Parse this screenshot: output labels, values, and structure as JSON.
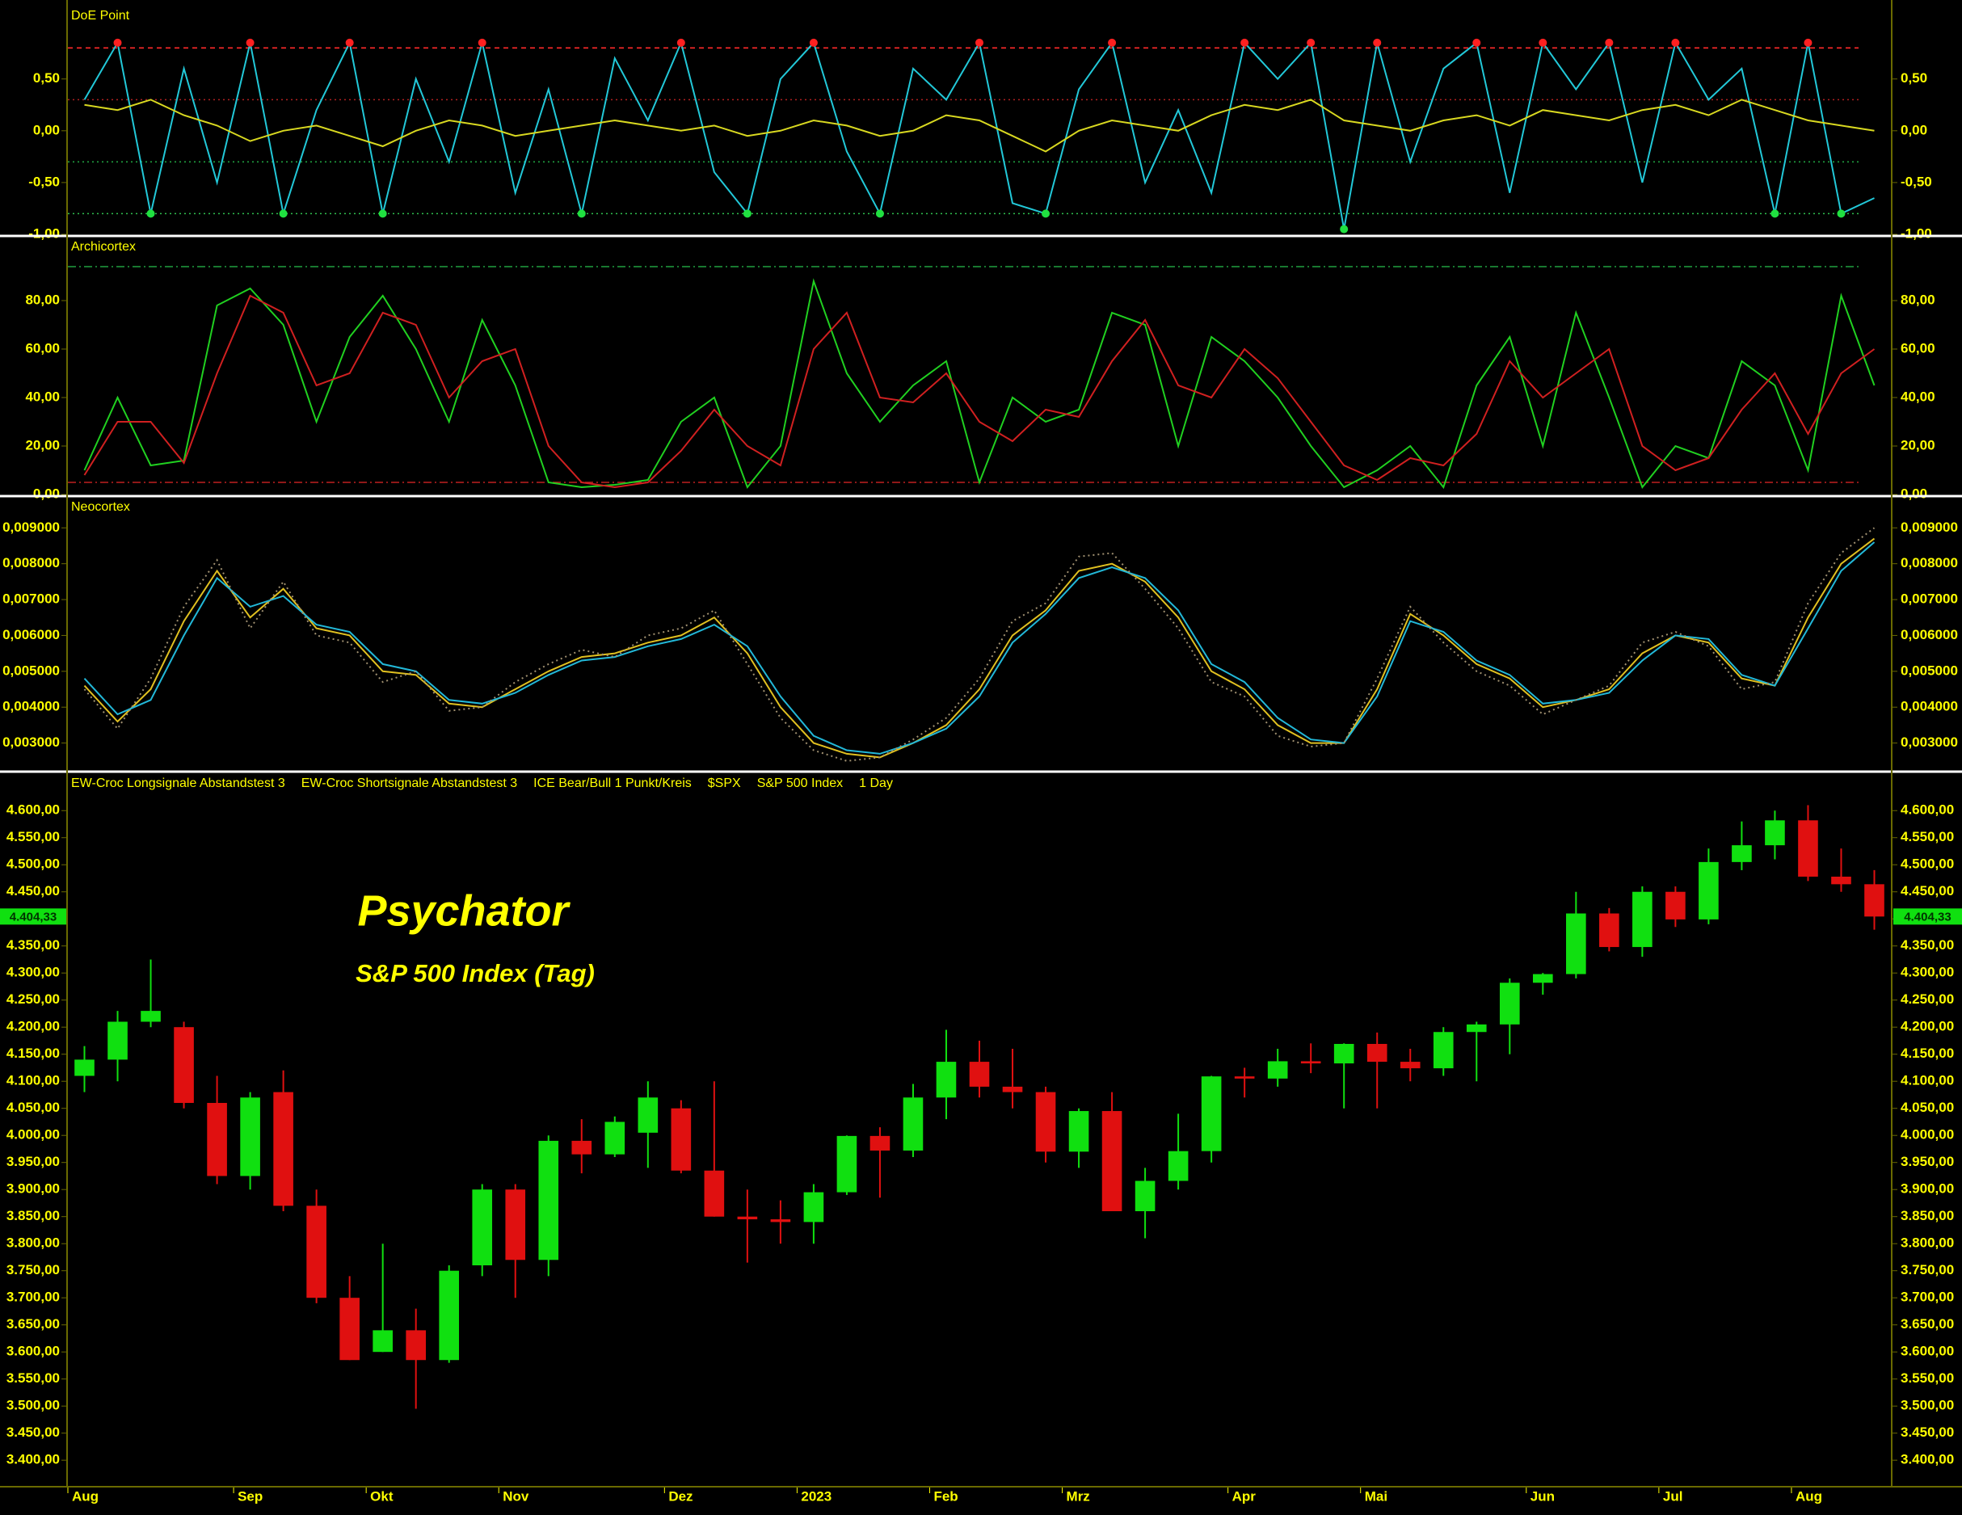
{
  "chart_data": [
    {
      "type": "line",
      "title": "DoE Point",
      "ylim": [
        -1.0,
        1.2
      ],
      "yticks": [
        {
          "value": 0.5,
          "label": "0,50"
        },
        {
          "value": 0,
          "label": "0,00"
        },
        {
          "value": -0.5,
          "label": "-0,50"
        },
        {
          "value": -1.0,
          "label": "-1,00"
        }
      ],
      "hlines": [
        {
          "value": 0.8,
          "color": "#ff2a2a",
          "style": "dashed"
        },
        {
          "value": 0.3,
          "color": "#b02020",
          "style": "dotted"
        },
        {
          "value": -0.3,
          "color": "#20a040",
          "style": "dotted"
        },
        {
          "value": -0.8,
          "color": "#30c050",
          "style": "dotted"
        }
      ],
      "series": [
        {
          "color": "#22c8d8",
          "values": [
            0.3,
            0.85,
            -0.8,
            0.6,
            -0.5,
            0.85,
            -0.8,
            0.2,
            0.85,
            -0.8,
            0.5,
            -0.3,
            0.85,
            -0.6,
            0.4,
            -0.8,
            0.7,
            0.1,
            0.85,
            -0.4,
            -0.8,
            0.5,
            0.85,
            -0.2,
            -0.8,
            0.6,
            0.3,
            0.85,
            -0.7,
            -0.8,
            0.4,
            0.85,
            -0.5,
            0.2,
            -0.6,
            0.85,
            0.5,
            0.85,
            -0.95,
            0.85,
            -0.3,
            0.6,
            0.85,
            -0.6,
            0.85,
            0.4,
            0.85,
            -0.5,
            0.85,
            0.3,
            0.6,
            -0.8,
            0.85,
            -0.8,
            -0.65
          ]
        },
        {
          "color": "#d8d820",
          "values": [
            0.25,
            0.2,
            0.3,
            0.15,
            0.05,
            -0.1,
            0.0,
            0.05,
            -0.05,
            -0.15,
            0.0,
            0.1,
            0.05,
            -0.05,
            0.0,
            0.05,
            0.1,
            0.05,
            0.0,
            0.05,
            -0.05,
            0.0,
            0.1,
            0.05,
            -0.05,
            0.0,
            0.15,
            0.1,
            -0.05,
            -0.2,
            0.0,
            0.1,
            0.05,
            0.0,
            0.15,
            0.25,
            0.2,
            0.3,
            0.1,
            0.05,
            0.0,
            0.1,
            0.15,
            0.05,
            0.2,
            0.15,
            0.1,
            0.2,
            0.25,
            0.15,
            0.3,
            0.2,
            0.1,
            0.05,
            0.0
          ]
        }
      ]
    },
    {
      "type": "line",
      "title": "Archicortex",
      "ylim": [
        0,
        106
      ],
      "yticks": [
        {
          "value": 0,
          "label": "0,00"
        },
        {
          "value": 20,
          "label": "20,00"
        },
        {
          "value": 40,
          "label": "40,00"
        },
        {
          "value": 60,
          "label": "60,00"
        },
        {
          "value": 80,
          "label": "80,00"
        }
      ],
      "hlines": [
        {
          "value": 94,
          "color": "#20a040",
          "style": "dashdot"
        },
        {
          "value": 5,
          "color": "#c02020",
          "style": "dashdot"
        }
      ],
      "series": [
        {
          "color": "#20d020",
          "values": [
            10,
            40,
            12,
            14,
            78,
            85,
            70,
            30,
            65,
            82,
            60,
            30,
            72,
            45,
            5,
            3,
            4,
            6,
            30,
            40,
            3,
            20,
            88,
            50,
            30,
            45,
            55,
            5,
            40,
            30,
            35,
            75,
            70,
            20,
            65,
            55,
            40,
            20,
            3,
            10,
            20,
            3,
            45,
            65,
            20,
            75,
            40,
            3,
            20,
            15,
            55,
            45,
            10,
            82,
            45
          ]
        },
        {
          "color": "#d02020",
          "values": [
            8,
            30,
            30,
            13,
            50,
            82,
            75,
            45,
            50,
            75,
            70,
            40,
            55,
            60,
            20,
            5,
            3,
            5,
            18,
            35,
            20,
            12,
            60,
            75,
            40,
            38,
            50,
            30,
            22,
            35,
            32,
            55,
            72,
            45,
            40,
            60,
            48,
            30,
            12,
            6,
            15,
            12,
            25,
            55,
            40,
            50,
            60,
            20,
            10,
            15,
            35,
            50,
            25,
            50,
            60
          ]
        }
      ]
    },
    {
      "type": "line",
      "title": "Neocortex",
      "ylim": [
        0.00227,
        0.00984
      ],
      "yticks": [
        {
          "value": 0.003,
          "label": "0,003000"
        },
        {
          "value": 0.004,
          "label": "0,004000"
        },
        {
          "value": 0.005,
          "label": "0,005000"
        },
        {
          "value": 0.006,
          "label": "0,006000"
        },
        {
          "value": 0.007,
          "label": "0,007000"
        },
        {
          "value": 0.008,
          "label": "0,008000"
        },
        {
          "value": 0.009,
          "label": "0,009000"
        }
      ],
      "series": [
        {
          "color": "#e0c020",
          "values": [
            0.0046,
            0.0036,
            0.0045,
            0.0064,
            0.0078,
            0.0065,
            0.0073,
            0.0062,
            0.006,
            0.005,
            0.0049,
            0.0041,
            0.004,
            0.0045,
            0.005,
            0.0054,
            0.0055,
            0.0058,
            0.006,
            0.0065,
            0.0055,
            0.004,
            0.003,
            0.0027,
            0.0026,
            0.003,
            0.0035,
            0.0045,
            0.006,
            0.0067,
            0.0078,
            0.008,
            0.0075,
            0.0065,
            0.005,
            0.0045,
            0.0035,
            0.003,
            0.003,
            0.0045,
            0.0066,
            0.006,
            0.0052,
            0.0048,
            0.004,
            0.0042,
            0.0045,
            0.0055,
            0.006,
            0.0058,
            0.0048,
            0.0046,
            0.0065,
            0.008,
            0.0087
          ]
        },
        {
          "color": "#22b8d8",
          "values": [
            0.0048,
            0.0038,
            0.0042,
            0.006,
            0.0076,
            0.0068,
            0.0071,
            0.0063,
            0.0061,
            0.0052,
            0.005,
            0.0042,
            0.0041,
            0.0044,
            0.0049,
            0.0053,
            0.0054,
            0.0057,
            0.0059,
            0.0063,
            0.0057,
            0.0043,
            0.0032,
            0.0028,
            0.0027,
            0.003,
            0.0034,
            0.0043,
            0.0058,
            0.0066,
            0.0076,
            0.0079,
            0.0076,
            0.0067,
            0.0052,
            0.0047,
            0.0037,
            0.0031,
            0.003,
            0.0043,
            0.0064,
            0.0061,
            0.0053,
            0.0049,
            0.0041,
            0.0042,
            0.0044,
            0.0053,
            0.006,
            0.0059,
            0.0049,
            0.0046,
            0.0062,
            0.0078,
            0.0086
          ]
        },
        {
          "color": "#a09070",
          "style": "dotted",
          "values": [
            0.0045,
            0.0034,
            0.0048,
            0.0068,
            0.0081,
            0.0062,
            0.0075,
            0.006,
            0.0058,
            0.0047,
            0.005,
            0.0039,
            0.004,
            0.0047,
            0.0052,
            0.0056,
            0.0054,
            0.006,
            0.0062,
            0.0067,
            0.0052,
            0.0037,
            0.0028,
            0.0025,
            0.0026,
            0.0031,
            0.0037,
            0.0048,
            0.0064,
            0.0069,
            0.0082,
            0.0083,
            0.0073,
            0.0062,
            0.0047,
            0.0043,
            0.0032,
            0.0029,
            0.003,
            0.0048,
            0.0068,
            0.0058,
            0.005,
            0.0046,
            0.0038,
            0.0042,
            0.0046,
            0.0058,
            0.0061,
            0.0057,
            0.0045,
            0.0047,
            0.0069,
            0.0083,
            0.009
          ]
        }
      ]
    },
    {
      "type": "candlestick",
      "legend": [
        "EW-Croc Longsignale Abstandstest 3",
        "EW-Croc Shortsignale Abstandstest 3",
        "ICE Bear/Bull 1 Punkt/Kreis",
        "$SPX",
        "S&P 500 Index",
        "1 Day"
      ],
      "annotations": [
        "Psychator",
        "S&P 500 Index (Tag)"
      ],
      "up_color": "#10e010",
      "down_color": "#e01010",
      "last": {
        "value": 4404.33,
        "label": "4.404,33"
      },
      "ylim": [
        3354,
        4669
      ],
      "yticks": [
        {
          "value": 3400,
          "label": "3.400,00"
        },
        {
          "value": 3450,
          "label": "3.450,00"
        },
        {
          "value": 3500,
          "label": "3.500,00"
        },
        {
          "value": 3550,
          "label": "3.550,00"
        },
        {
          "value": 3600,
          "label": "3.600,00"
        },
        {
          "value": 3650,
          "label": "3.650,00"
        },
        {
          "value": 3700,
          "label": "3.700,00"
        },
        {
          "value": 3750,
          "label": "3.750,00"
        },
        {
          "value": 3800,
          "label": "3.800,00"
        },
        {
          "value": 3850,
          "label": "3.850,00"
        },
        {
          "value": 3900,
          "label": "3.900,00"
        },
        {
          "value": 3950,
          "label": "3.950,00"
        },
        {
          "value": 4000,
          "label": "4.000,00"
        },
        {
          "value": 4050,
          "label": "4.050,00"
        },
        {
          "value": 4100,
          "label": "4.100,00"
        },
        {
          "value": 4150,
          "label": "4.150,00"
        },
        {
          "value": 4200,
          "label": "4.200,00"
        },
        {
          "value": 4250,
          "label": "4.250,00"
        },
        {
          "value": 4300,
          "label": "4.300,00"
        },
        {
          "value": 4350,
          "label": "4.350,00"
        },
        {
          "value": 4400,
          "label": "4.400,00"
        },
        {
          "value": 4450,
          "label": "4.450,00"
        },
        {
          "value": 4500,
          "label": "4.500,00"
        },
        {
          "value": 4550,
          "label": "4.550,00"
        },
        {
          "value": 4600,
          "label": "4.600,00"
        }
      ],
      "categories": [
        "Aug",
        null,
        null,
        null,
        null,
        "Sep",
        null,
        null,
        null,
        "Okt",
        null,
        null,
        null,
        "Nov",
        null,
        null,
        null,
        null,
        "Dez",
        null,
        null,
        null,
        "2023",
        null,
        null,
        null,
        "Feb",
        null,
        null,
        null,
        "Mrz",
        null,
        null,
        null,
        null,
        "Apr",
        null,
        null,
        null,
        "Mai",
        null,
        null,
        null,
        null,
        "Jun",
        null,
        null,
        null,
        "Jul",
        null,
        null,
        null,
        "Aug",
        null,
        null
      ],
      "open": [
        4110,
        4140,
        4210,
        4200,
        4060,
        3925,
        4080,
        3870,
        3700,
        3600,
        3640,
        3585,
        3760,
        3900,
        3770,
        3990,
        3965,
        4005,
        4050,
        3935,
        3850,
        3845,
        3840,
        3895,
        3999,
        3972,
        4070,
        4136,
        4090,
        4080,
        3970,
        4045,
        3860,
        3916,
        3971,
        4109,
        4105,
        4137,
        4133,
        4169,
        4136,
        4124,
        4191,
        4205,
        4282,
        4298,
        4410,
        4348,
        4450,
        4399,
        4505,
        4536,
        4582,
        4478,
        4464
      ],
      "high": [
        4165,
        4230,
        4325,
        4210,
        4110,
        4080,
        4120,
        3900,
        3740,
        3800,
        3680,
        3760,
        3910,
        3910,
        4000,
        4030,
        4035,
        4100,
        4065,
        4100,
        3900,
        3880,
        3910,
        4000,
        4015,
        4095,
        4195,
        4175,
        4160,
        4090,
        4050,
        4080,
        3940,
        4040,
        4110,
        4125,
        4160,
        4170,
        4170,
        4190,
        4160,
        4200,
        4210,
        4290,
        4300,
        4450,
        4420,
        4460,
        4460,
        4530,
        4580,
        4600,
        4610,
        4530,
        4490
      ],
      "low": [
        4080,
        4100,
        4200,
        4050,
        3910,
        3900,
        3860,
        3690,
        3585,
        3600,
        3495,
        3580,
        3740,
        3700,
        3740,
        3930,
        3960,
        3940,
        3930,
        3850,
        3765,
        3800,
        3800,
        3890,
        3885,
        3960,
        4030,
        4070,
        4050,
        3950,
        3940,
        3860,
        3810,
        3900,
        3950,
        4070,
        4090,
        4115,
        4050,
        4050,
        4100,
        4110,
        4100,
        4150,
        4260,
        4290,
        4340,
        4330,
        4385,
        4390,
        4490,
        4510,
        4470,
        4450,
        4380
      ],
      "close": [
        4140,
        4210,
        4230,
        4060,
        3925,
        4070,
        3870,
        3700,
        3585,
        3640,
        3585,
        3750,
        3900,
        3770,
        3990,
        3965,
        4025,
        4070,
        3935,
        3850,
        3845,
        3840,
        3895,
        3999,
        3972,
        4070,
        4136,
        4090,
        4080,
        3970,
        4045,
        3860,
        3916,
        3971,
        4109,
        4105,
        4137,
        4133,
        4169,
        4136,
        4124,
        4191,
        4205,
        4282,
        4298,
        4410,
        4348,
        4450,
        4399,
        4505,
        4536,
        4582,
        4478,
        4464,
        4404.33
      ]
    }
  ]
}
